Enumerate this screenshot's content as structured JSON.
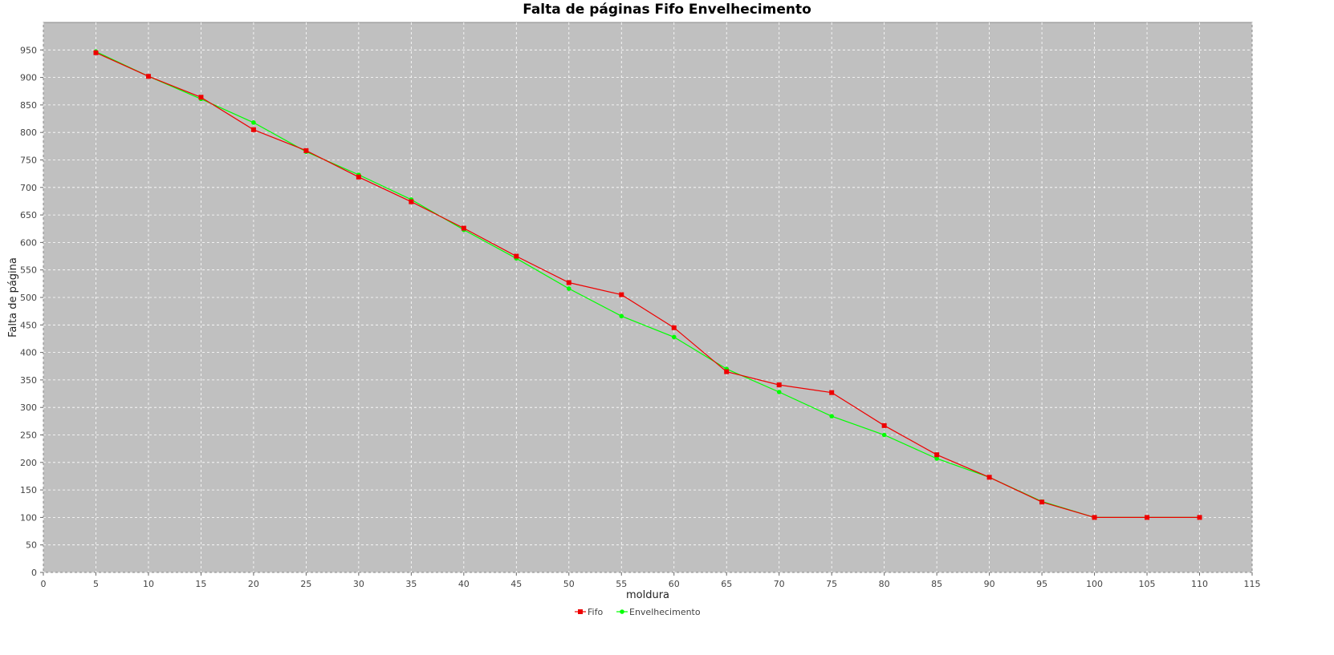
{
  "chart_data": {
    "type": "line",
    "title": "Falta de páginas Fifo Envelhecimento",
    "xlabel": "moldura",
    "ylabel": "Falta de página",
    "xlim": [
      0,
      115
    ],
    "ylim": [
      0,
      1000
    ],
    "xticks": [
      0,
      5,
      10,
      15,
      20,
      25,
      30,
      35,
      40,
      45,
      50,
      55,
      60,
      65,
      70,
      75,
      80,
      85,
      90,
      95,
      100,
      105,
      110,
      115
    ],
    "yticks": [
      0,
      50,
      100,
      150,
      200,
      250,
      300,
      350,
      400,
      450,
      500,
      550,
      600,
      650,
      700,
      750,
      800,
      850,
      900,
      950
    ],
    "grid": true,
    "legend_position": "bottom-center",
    "plot_background": "#c0c0c0",
    "series": [
      {
        "name": "Envelhecimento",
        "color": "#00ff00",
        "marker": "circle",
        "x": [
          5,
          10,
          15,
          20,
          25,
          30,
          35,
          40,
          45,
          50,
          55,
          60,
          65,
          70,
          75,
          80,
          85,
          90,
          95,
          100,
          105,
          110
        ],
        "y": [
          947,
          902,
          861,
          818,
          765,
          723,
          678,
          623,
          571,
          516,
          466,
          428,
          370,
          328,
          284,
          250,
          207,
          173,
          129,
          100,
          100,
          100
        ]
      },
      {
        "name": "Fifo",
        "color": "#ee0000",
        "marker": "square",
        "x": [
          5,
          10,
          15,
          20,
          25,
          30,
          35,
          40,
          45,
          50,
          55,
          60,
          65,
          70,
          75,
          80,
          85,
          90,
          95,
          100,
          105,
          110
        ],
        "y": [
          945,
          902,
          864,
          805,
          767,
          719,
          674,
          626,
          575,
          527,
          505,
          445,
          365,
          341,
          327,
          267,
          214,
          173,
          128,
          100,
          100,
          100
        ]
      }
    ]
  }
}
